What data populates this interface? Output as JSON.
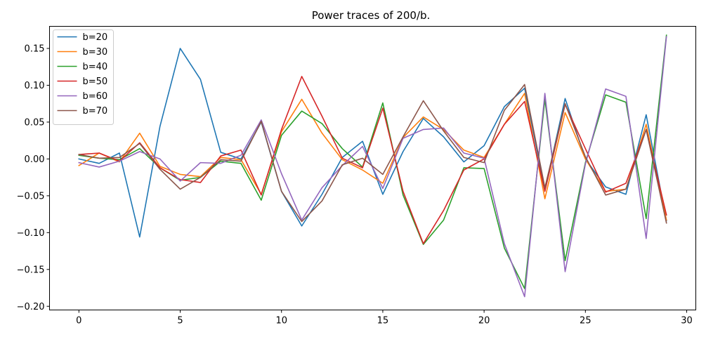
{
  "chart_data": {
    "type": "line",
    "title": "Power traces of 200/b.",
    "xlabel": "",
    "ylabel": "",
    "xlim": [
      -1.45,
      30.45
    ],
    "ylim": [
      -0.205,
      0.18
    ],
    "xticks": [
      0,
      5,
      10,
      15,
      20,
      25,
      30
    ],
    "xtick_labels": [
      "0",
      "5",
      "10",
      "15",
      "20",
      "25",
      "30"
    ],
    "yticks": [
      0.15,
      0.1,
      0.05,
      0.0,
      -0.05,
      -0.1,
      -0.15,
      -0.2
    ],
    "ytick_labels": [
      "0.15",
      "0.10",
      "0.05",
      "0.00",
      "−0.05",
      "−0.10",
      "−0.15",
      "−0.20"
    ],
    "grid": false,
    "legend_position": "top-left",
    "x": [
      0,
      1,
      2,
      3,
      4,
      5,
      6,
      7,
      8,
      9,
      10,
      11,
      12,
      13,
      14,
      15,
      16,
      17,
      18,
      19,
      20,
      21,
      22,
      23,
      24,
      25,
      26,
      27,
      28,
      29
    ],
    "series": [
      {
        "name": "b=20",
        "color": "#1f77b4",
        "values": [
          0.0,
          -0.006,
          0.008,
          -0.106,
          0.044,
          0.15,
          0.108,
          0.009,
          0.0,
          0.05,
          -0.044,
          -0.091,
          -0.048,
          0.002,
          0.024,
          -0.048,
          0.01,
          0.055,
          0.03,
          -0.004,
          0.018,
          0.071,
          0.096,
          -0.042,
          0.082,
          0.0,
          -0.038,
          -0.048,
          0.06,
          -0.084
        ]
      },
      {
        "name": "b=30",
        "color": "#ff7f0e",
        "values": [
          -0.009,
          0.008,
          -0.004,
          0.035,
          -0.01,
          -0.021,
          -0.024,
          0.002,
          -0.001,
          -0.048,
          0.037,
          0.081,
          0.035,
          -0.001,
          -0.015,
          -0.033,
          0.029,
          0.057,
          0.04,
          0.012,
          0.002,
          0.047,
          0.089,
          -0.054,
          0.063,
          0.0,
          -0.044,
          -0.041,
          0.047,
          -0.083
        ]
      },
      {
        "name": "b=40",
        "color": "#2ca02c",
        "values": [
          0.005,
          0.001,
          -0.001,
          0.014,
          -0.012,
          -0.029,
          -0.025,
          -0.003,
          -0.006,
          -0.056,
          0.032,
          0.065,
          0.048,
          0.014,
          -0.011,
          0.076,
          -0.049,
          -0.116,
          -0.083,
          -0.012,
          -0.013,
          -0.121,
          -0.176,
          0.081,
          -0.138,
          -0.005,
          0.087,
          0.077,
          -0.081,
          0.168
        ]
      },
      {
        "name": "b=50",
        "color": "#d62728",
        "values": [
          0.006,
          0.008,
          -0.003,
          0.022,
          -0.012,
          -0.028,
          -0.032,
          0.004,
          0.012,
          -0.049,
          0.04,
          0.112,
          0.058,
          0.001,
          -0.012,
          0.069,
          -0.044,
          -0.115,
          -0.07,
          -0.015,
          0.0,
          0.047,
          0.078,
          -0.044,
          0.074,
          0.014,
          -0.045,
          -0.033,
          0.04,
          -0.076
        ]
      },
      {
        "name": "b=60",
        "color": "#9467bd",
        "values": [
          -0.005,
          -0.011,
          -0.003,
          0.01,
          0.0,
          -0.03,
          -0.005,
          -0.006,
          0.005,
          0.053,
          -0.02,
          -0.083,
          -0.039,
          -0.009,
          0.017,
          -0.04,
          0.028,
          0.04,
          0.042,
          0.008,
          0.001,
          -0.115,
          -0.187,
          0.089,
          -0.153,
          -0.007,
          0.095,
          0.085,
          -0.108,
          0.166
        ]
      },
      {
        "name": "b=70",
        "color": "#8c564b",
        "values": [
          0.006,
          0.001,
          0.002,
          0.021,
          -0.014,
          -0.041,
          -0.025,
          -0.001,
          -0.003,
          0.051,
          -0.044,
          -0.085,
          -0.057,
          -0.008,
          0.001,
          -0.021,
          0.03,
          0.079,
          0.038,
          0.002,
          -0.005,
          0.066,
          0.101,
          -0.039,
          0.075,
          0.003,
          -0.049,
          -0.041,
          0.04,
          -0.087
        ]
      }
    ]
  }
}
